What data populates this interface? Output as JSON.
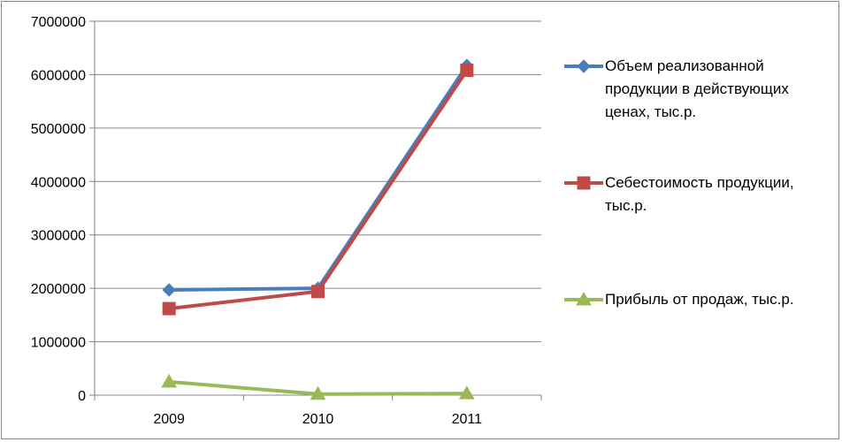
{
  "chart_data": {
    "type": "line",
    "categories": [
      "2009",
      "2010",
      "2011"
    ],
    "ylim": [
      0,
      7000000
    ],
    "yticks": [
      "0",
      "1000000",
      "2000000",
      "3000000",
      "4000000",
      "5000000",
      "6000000",
      "7000000"
    ],
    "grid": true,
    "legend_position": "right",
    "series": [
      {
        "name": "Объем реализованной продукции в действующих ценах, тыс.р.",
        "values": [
          1970000,
          2000000,
          6170000
        ],
        "color": "#4A7EBB",
        "marker": "diamond"
      },
      {
        "name": "Себестоимость продукции, тыс.р.",
        "values": [
          1620000,
          1940000,
          6080000
        ],
        "color": "#BE4B48",
        "marker": "square"
      },
      {
        "name": "Прибыль от продаж, тыс.р.",
        "values": [
          250000,
          20000,
          30000
        ],
        "color": "#98B954",
        "marker": "triangle"
      }
    ]
  }
}
